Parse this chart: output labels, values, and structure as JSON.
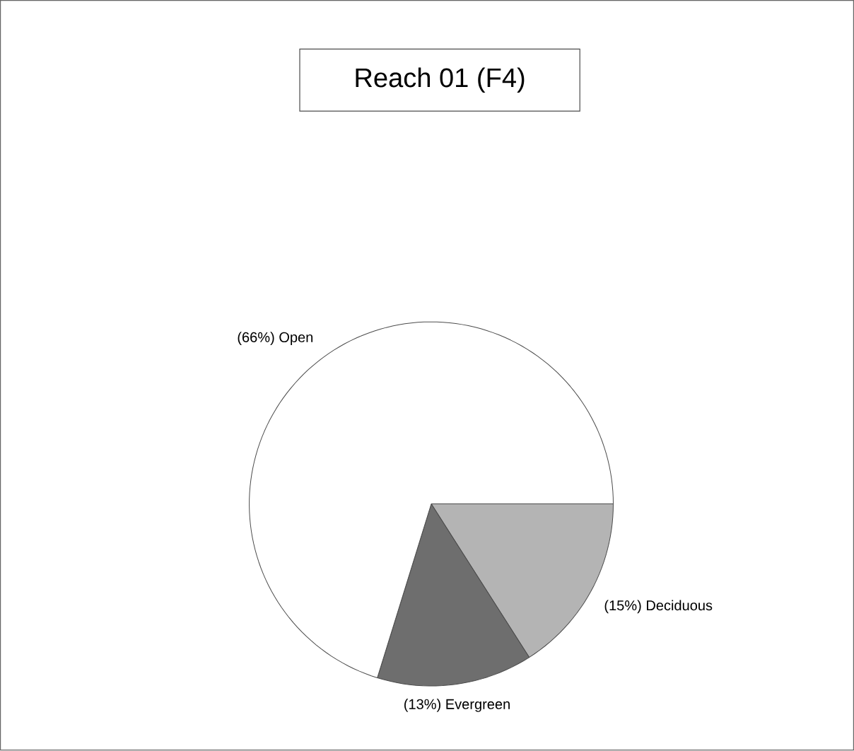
{
  "chart_data": {
    "type": "pie",
    "title": "Reach 01 (F4)",
    "categories": [
      "Deciduous",
      "Evergreen",
      "Open"
    ],
    "values": [
      15,
      13,
      66
    ],
    "value_labels": [
      "(15%)",
      "(13%)",
      "(66%)"
    ],
    "colors": [
      "#b4b4b4",
      "#6e6e6e",
      "#ffffff"
    ]
  }
}
